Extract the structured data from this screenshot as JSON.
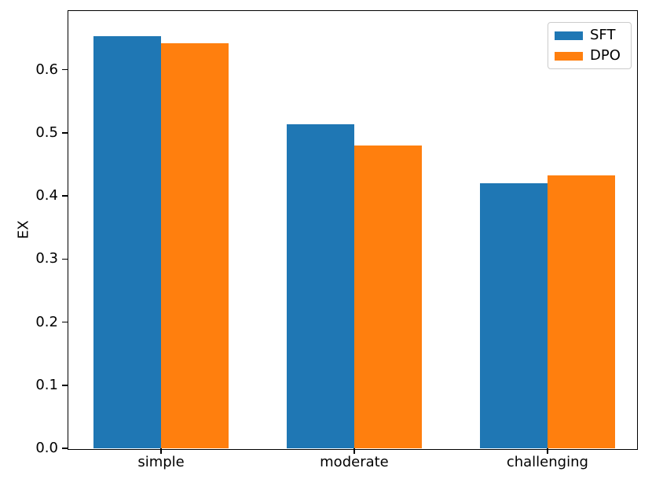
{
  "chart_data": {
    "type": "bar",
    "title": "",
    "xlabel": "",
    "ylabel": "EX",
    "categories": [
      "simple",
      "moderate",
      "challenging"
    ],
    "series": [
      {
        "name": "SFT",
        "color": "#1f77b4",
        "values": [
          0.653,
          0.514,
          0.42
        ]
      },
      {
        "name": "DPO",
        "color": "#ff7f0e",
        "values": [
          0.642,
          0.48,
          0.433
        ]
      }
    ],
    "yticks": [
      0.0,
      0.1,
      0.2,
      0.3,
      0.4,
      0.5,
      0.6
    ],
    "ytick_format_decimals": 1,
    "ylim": [
      0,
      0.693
    ],
    "xlim": [
      -0.48,
      2.46
    ],
    "bar_width": 0.35,
    "grid": false,
    "legend_position": "upper right",
    "spine_color": "#000000",
    "background_color": "#ffffff"
  }
}
